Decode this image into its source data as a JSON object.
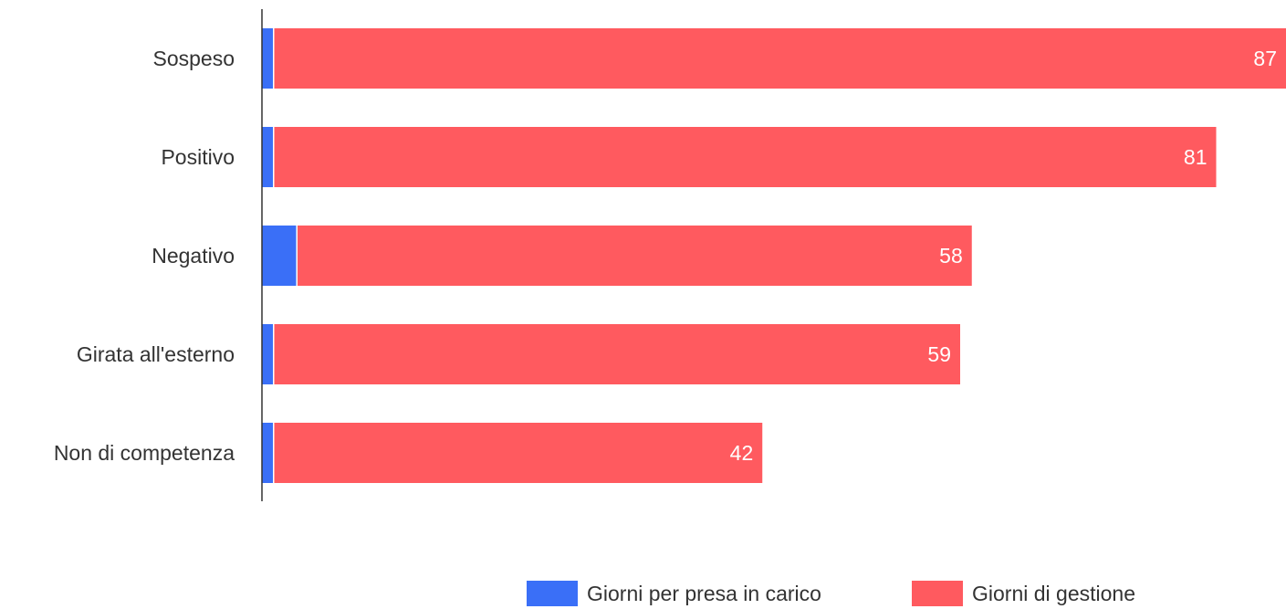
{
  "chart_data": {
    "type": "bar",
    "orientation": "horizontal",
    "stacked": true,
    "categories": [
      "Sospeso",
      "Positivo",
      "Negativo",
      "Girata all'esterno",
      "Non di competenza"
    ],
    "series": [
      {
        "name": "Giorni per presa in carico",
        "color": "#3A6FF7",
        "values": [
          1,
          1,
          3,
          1,
          1
        ],
        "show_labels": false
      },
      {
        "name": "Giorni di gestione",
        "color": "#FF5A5F",
        "values": [
          87,
          81,
          58,
          59,
          42
        ],
        "show_labels": true
      }
    ],
    "xlim": [
      0,
      88
    ],
    "grid": false,
    "legend_position": "bottom-right",
    "axis_color": "#333333"
  }
}
